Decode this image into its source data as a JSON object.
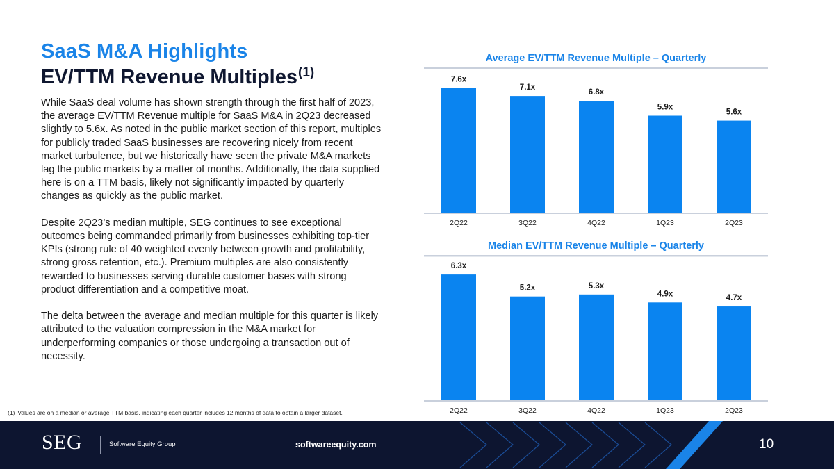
{
  "header": {
    "kicker": "SaaS M&A Highlights",
    "title": "EV/TTM Revenue Multiples",
    "title_superscript": "(1)"
  },
  "body": {
    "paragraphs": [
      "While SaaS deal volume has shown strength through the first half of 2023, the average EV/TTM Revenue multiple for SaaS M&A in 2Q23 decreased slightly to 5.6x. As noted in the public market section of this report, multiples for publicly traded SaaS businesses are recovering nicely from recent market turbulence, but we historically have seen the private M&A markets lag the public markets by a matter of months. Additionally, the data supplied here is on a TTM basis, likely not significantly impacted by quarterly changes as quickly as the public market.",
      "Despite 2Q23’s median multiple, SEG continues to see exceptional outcomes being commanded primarily from businesses exhibiting top-tier KPIs (strong rule of 40 weighted evenly between growth and profitability, strong gross retention, etc.). Premium multiples are also consistently rewarded to businesses serving durable customer bases with strong product differentiation and a competitive moat.",
      "The delta between the average and median multiple for this quarter is likely attributed to the valuation compression in the M&A market for underperforming companies or those undergoing a transaction out of necessity."
    ]
  },
  "footnote": {
    "number": "(1)",
    "text": "Values are on a median or average TTM basis, indicating each quarter includes 12 months of data to obtain a larger dataset."
  },
  "footer": {
    "logo_text": "SEG",
    "company": "Software Equity Group",
    "website": "softwareequity.com",
    "page_number": "10"
  },
  "colors": {
    "accent": "#1a84e8",
    "bar": "#0a84f0",
    "navy": "#0d1530",
    "rule": "#c9d0dc"
  },
  "chart_data": [
    {
      "type": "bar",
      "title": "Average EV/TTM Revenue Multiple – Quarterly",
      "categories": [
        "2Q22",
        "3Q22",
        "4Q22",
        "1Q23",
        "2Q23"
      ],
      "values": [
        7.6,
        7.1,
        6.8,
        5.9,
        5.6
      ],
      "labels": [
        "7.6x",
        "7.1x",
        "6.8x",
        "5.9x",
        "5.6x"
      ],
      "xlabel": "",
      "ylabel": "",
      "ylim": [
        0,
        8.5
      ],
      "grid": false
    },
    {
      "type": "bar",
      "title": "Median EV/TTM Revenue Multiple – Quarterly",
      "categories": [
        "2Q22",
        "3Q22",
        "4Q22",
        "1Q23",
        "2Q23"
      ],
      "values": [
        6.3,
        5.2,
        5.3,
        4.9,
        4.7
      ],
      "labels": [
        "6.3x",
        "5.2x",
        "5.3x",
        "4.9x",
        "4.7x"
      ],
      "xlabel": "",
      "ylabel": "",
      "ylim": [
        0,
        7.0
      ],
      "grid": false
    }
  ]
}
